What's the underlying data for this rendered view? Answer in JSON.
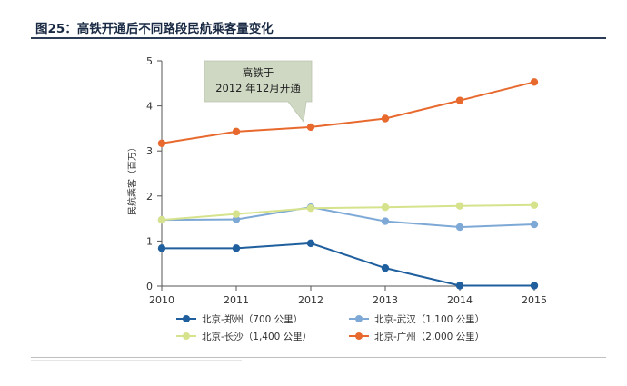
{
  "figure": {
    "title": "图25：高铁开通后不同路段民航乘客量变化"
  },
  "chart_data": {
    "type": "line",
    "title": "",
    "xlabel": "",
    "ylabel": "民航乘客（百万）",
    "x": [
      "2010",
      "2011",
      "2012",
      "2013",
      "2014",
      "2015"
    ],
    "ylim": [
      0,
      5
    ],
    "yticks": [
      "0",
      "1",
      "2",
      "3",
      "4",
      "5"
    ],
    "grid": false,
    "legend_position": "bottom",
    "series": [
      {
        "name": "北京-郑州（700 公里）",
        "color": "#1f5f9e",
        "values": [
          0.84,
          0.84,
          0.95,
          0.4,
          0.01,
          0.01
        ]
      },
      {
        "name": "北京-武汉（1,100 公里）",
        "color": "#7ea9d6",
        "values": [
          1.47,
          1.48,
          1.75,
          1.44,
          1.31,
          1.37
        ]
      },
      {
        "name": "北京-长沙（1,400 公里）",
        "color": "#d6e38c",
        "values": [
          1.47,
          1.6,
          1.73,
          1.75,
          1.78,
          1.8
        ]
      },
      {
        "name": "北京-广州（2,000 公里）",
        "color": "#e8692e",
        "values": [
          3.17,
          3.43,
          3.53,
          3.72,
          4.12,
          4.53
        ]
      }
    ],
    "annotations": [
      {
        "line1": "高铁于",
        "line2": "2012 年12月开通",
        "x": "2012",
        "y": 3.53
      }
    ]
  }
}
